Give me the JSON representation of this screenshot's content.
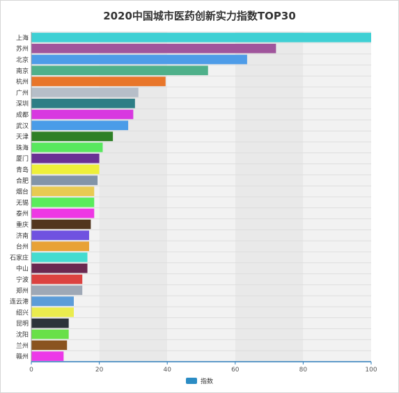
{
  "chart_data": {
    "type": "bar",
    "orientation": "horizontal",
    "title": "2020中国城市医药创新实力指数TOP30",
    "xlim": [
      0,
      100
    ],
    "x_ticks": [
      0,
      20,
      40,
      60,
      80,
      100
    ],
    "legend": {
      "label": "指数",
      "color": "#2b8cc4",
      "position": "bottom-center"
    },
    "categories": [
      "上海",
      "苏州",
      "北京",
      "南京",
      "杭州",
      "广州",
      "深圳",
      "成都",
      "武汉",
      "天津",
      "珠海",
      "厦门",
      "青岛",
      "合肥",
      "烟台",
      "无锡",
      "泰州",
      "重庆",
      "济南",
      "台州",
      "石家庄",
      "中山",
      "宁波",
      "郑州",
      "连云港",
      "绍兴",
      "昆明",
      "沈阳",
      "兰州",
      "赣州"
    ],
    "values": [
      100,
      72,
      63.5,
      52,
      39.5,
      31.5,
      30.5,
      30,
      28.5,
      24,
      21,
      20,
      20,
      19.5,
      18.5,
      18.5,
      18.5,
      17.5,
      17,
      17,
      16.5,
      16.5,
      15,
      15,
      12.5,
      12.5,
      11,
      11,
      10.5,
      9.5
    ],
    "colors": [
      "#3fd0d4",
      "#a0559c",
      "#4e9ce8",
      "#4fb08a",
      "#e8762a",
      "#b6bec8",
      "#2e7e86",
      "#d838e0",
      "#4a9ce8",
      "#2e8026",
      "#58e85e",
      "#6a3194",
      "#eef03a",
      "#8294a8",
      "#e8ca52",
      "#5aec5c",
      "#ee38e4",
      "#52361e",
      "#7052e0",
      "#e8a236",
      "#44dcd0",
      "#6a2850",
      "#dc4240",
      "#9ea8b6",
      "#5c9cd8",
      "#eaec4e",
      "#2c343a",
      "#68e048",
      "#8a5420",
      "#ec38e8"
    ]
  }
}
